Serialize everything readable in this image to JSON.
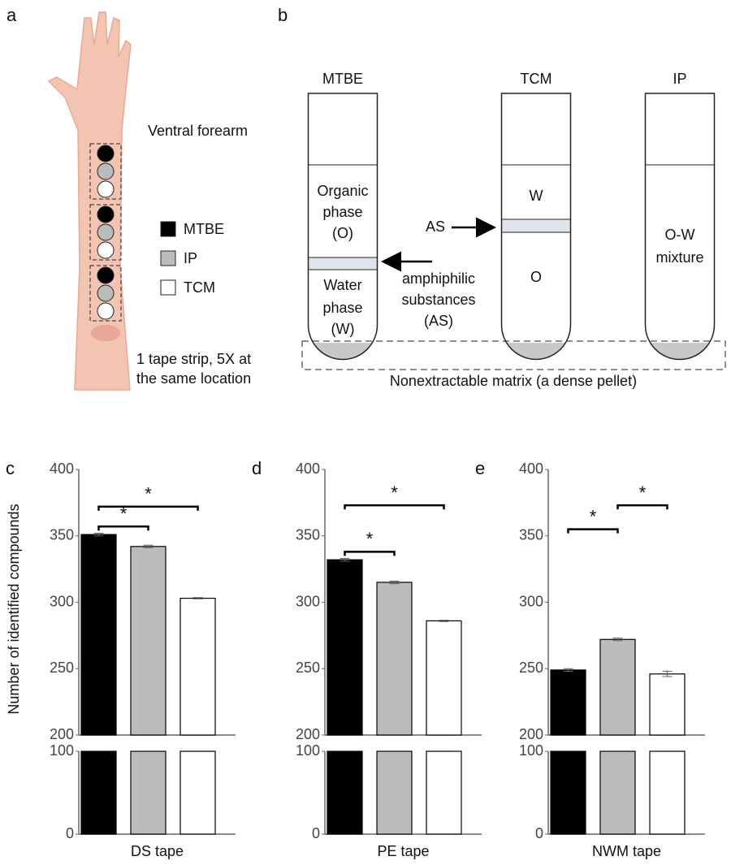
{
  "panel_a": {
    "label": "a",
    "site": "Ventral forearm",
    "legend": [
      "MTBE",
      "IP",
      "TCM"
    ],
    "note": [
      "1 tape strip, 5X at",
      "the same location"
    ]
  },
  "panel_b": {
    "label": "b",
    "tubes": [
      {
        "name": "MTBE",
        "upper": [
          "Organic",
          "phase",
          "(O)"
        ],
        "lower": [
          "Water",
          "phase",
          "(W)"
        ]
      },
      {
        "name": "TCM",
        "upper": [
          "W"
        ],
        "lower": [
          "O"
        ]
      },
      {
        "name": "IP",
        "upper": [
          "O-W",
          "mixture"
        ],
        "lower": []
      }
    ],
    "as": "AS",
    "amphiphilic": [
      "amphiphilic",
      "substances",
      "(AS)"
    ],
    "pellet": "Nonextractable matrix (a dense pellet)"
  },
  "chart_data": [
    {
      "type": "bar",
      "panel": "c",
      "y_label": "Number of identified compounds",
      "x_label": "DS tape",
      "categories": [
        null,
        null,
        null
      ],
      "values": [
        351,
        342,
        303
      ],
      "errors": [
        1,
        1,
        0.5
      ],
      "colors": [
        "#000000",
        "#bcbcbc",
        "#ffffff"
      ],
      "ylim": [
        0,
        400
      ],
      "axis_break": [
        100,
        200
      ],
      "yticks": [
        0,
        100,
        200,
        250,
        300,
        350,
        400
      ],
      "significance": [
        {
          "from": 0,
          "to": 1,
          "y": 357,
          "label": "*"
        },
        {
          "from": 0,
          "to": 2,
          "y": 372,
          "label": "*"
        }
      ]
    },
    {
      "type": "bar",
      "panel": "d",
      "x_label": "PE tape",
      "categories": [
        null,
        null,
        null
      ],
      "values": [
        332,
        315,
        286
      ],
      "errors": [
        1,
        1,
        0.5
      ],
      "colors": [
        "#000000",
        "#bcbcbc",
        "#ffffff"
      ],
      "ylim": [
        0,
        400
      ],
      "axis_break": [
        100,
        200
      ],
      "yticks": [
        0,
        100,
        200,
        250,
        300,
        350,
        400
      ],
      "significance": [
        {
          "from": 0,
          "to": 1,
          "y": 338,
          "label": "*"
        },
        {
          "from": 0,
          "to": 2,
          "y": 373,
          "label": "*"
        }
      ]
    },
    {
      "type": "bar",
      "panel": "e",
      "x_label": "NWM tape",
      "categories": [
        null,
        null,
        null
      ],
      "values": [
        249,
        272,
        246
      ],
      "errors": [
        1,
        1,
        2
      ],
      "colors": [
        "#000000",
        "#bcbcbc",
        "#ffffff"
      ],
      "ylim": [
        0,
        400
      ],
      "axis_break": [
        100,
        200
      ],
      "yticks": [
        0,
        100,
        200,
        250,
        300,
        350,
        400
      ],
      "significance": [
        {
          "from": 0,
          "to": 1,
          "y": 355,
          "label": "*"
        },
        {
          "from": 1,
          "to": 2,
          "y": 373,
          "label": "*"
        }
      ]
    }
  ]
}
